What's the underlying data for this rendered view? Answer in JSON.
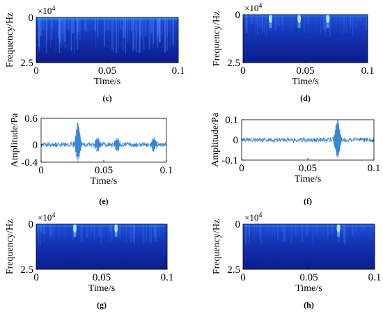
{
  "colors": {
    "spectrogram_background": "#0b1c8f",
    "spectrogram_hot": "#2ea6ff",
    "signal_line": "#3a86d4"
  },
  "chart_data": [
    {
      "panel": "c",
      "type": "heatmap",
      "caption": "(c)",
      "xlabel": "Time/s",
      "ylabel": "Frequency/Hz",
      "y_multiplier": "×10",
      "y_multiplier_exp": "4",
      "xlim": [
        0,
        0.1
      ],
      "ylim": [
        0,
        2.5
      ],
      "y_inverted": true,
      "x_ticks": [
        "0",
        "0.05",
        "0.1"
      ],
      "y_ticks": [
        "0",
        "2.5"
      ],
      "impulse_times": []
    },
    {
      "panel": "d",
      "type": "heatmap",
      "caption": "(d)",
      "xlabel": "Time/s",
      "ylabel": "Frequency/Hz",
      "y_multiplier": "×10",
      "y_multiplier_exp": "4",
      "xlim": [
        0,
        0.1
      ],
      "ylim": [
        0,
        2.5
      ],
      "y_inverted": true,
      "x_ticks": [
        "0",
        "0.05",
        "0.1"
      ],
      "y_ticks": [
        "0",
        "2.5"
      ],
      "impulse_times": [
        0.022,
        0.045,
        0.068
      ]
    },
    {
      "panel": "e",
      "type": "line",
      "caption": "(e)",
      "xlabel": "Time/s",
      "ylabel": "Amplitude/Pa",
      "xlim": [
        0,
        0.1
      ],
      "ylim": [
        -0.4,
        0.6
      ],
      "x_ticks": [
        "0",
        "0.05",
        "0.1"
      ],
      "y_ticks": [
        "0.6",
        "0",
        "-0.4"
      ],
      "noise_amplitude": 0.06,
      "impulses": [
        {
          "t": 0.0295,
          "up": 0.48,
          "down": -0.32
        },
        {
          "t": 0.045,
          "up": 0.14,
          "down": -0.12
        },
        {
          "t": 0.061,
          "up": 0.16,
          "down": -0.14
        },
        {
          "t": 0.09,
          "up": 0.14,
          "down": -0.12
        }
      ]
    },
    {
      "panel": "f",
      "type": "line",
      "caption": "(f)",
      "xlabel": "Time/s",
      "ylabel": "Amplitude/Pa",
      "xlim": [
        0,
        0.1
      ],
      "ylim": [
        -0.1,
        0.1
      ],
      "x_ticks": [
        "0",
        "0.05",
        "0.1"
      ],
      "y_ticks": [
        "0.1",
        "0",
        "-0.1"
      ],
      "noise_amplitude": 0.012,
      "impulses": [
        {
          "t": 0.0725,
          "up": 0.095,
          "down": -0.085
        }
      ]
    },
    {
      "panel": "g",
      "type": "heatmap",
      "caption": "(g)",
      "xlabel": "Time/s",
      "ylabel": "Frequency/Hz",
      "y_multiplier": "×10",
      "y_multiplier_exp": "4",
      "xlim": [
        0,
        0.1
      ],
      "ylim": [
        0,
        2.5
      ],
      "y_inverted": true,
      "x_ticks": [
        "0",
        "0.05",
        "0.1"
      ],
      "y_ticks": [
        "0",
        "2.5"
      ],
      "impulse_times": [
        0.0295,
        0.061
      ]
    },
    {
      "panel": "h",
      "type": "heatmap",
      "caption": "(h)",
      "xlabel": "Time/s",
      "ylabel": "Frequency/Hz",
      "y_multiplier": "×10",
      "y_multiplier_exp": "4",
      "xlim": [
        0,
        0.1
      ],
      "ylim": [
        0,
        2.5
      ],
      "y_inverted": true,
      "x_ticks": [
        "0",
        "0.05",
        "0.1"
      ],
      "y_ticks": [
        "0",
        "2.5"
      ],
      "impulse_times": [
        0.0725
      ]
    }
  ]
}
